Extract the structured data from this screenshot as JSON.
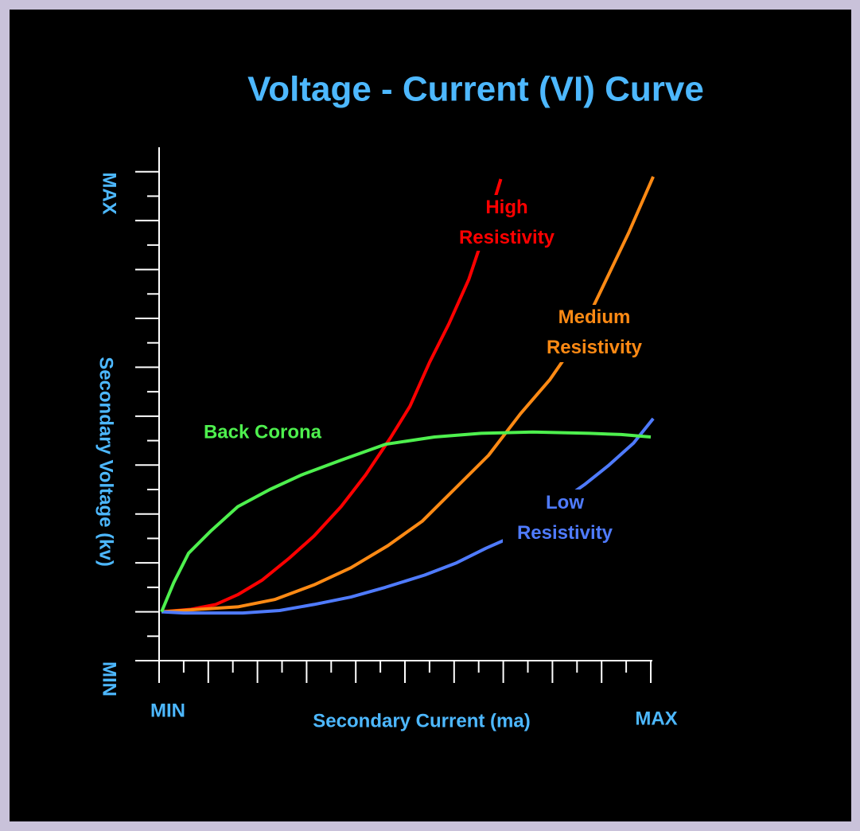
{
  "chart_data": {
    "type": "line",
    "title": "Voltage - Current (VI) Curve",
    "x_label": "Secondary Current (ma)",
    "y_label": "Secondary Voltage (kv)",
    "x_min_label": "MIN",
    "x_max_label": "MAX",
    "y_min_label": "MIN",
    "y_max_label": "MAX",
    "xlim": [
      0,
      20
    ],
    "ylim": [
      0,
      21
    ],
    "xticks": [
      0,
      1,
      2,
      3,
      4,
      5,
      6,
      7,
      8,
      9,
      10,
      11,
      12,
      13,
      14,
      15,
      16,
      17,
      18,
      19,
      20
    ],
    "yticks": [
      0,
      1,
      2,
      3,
      4,
      5,
      6,
      7,
      8,
      9,
      10,
      11,
      12,
      13,
      14,
      15,
      16,
      17,
      18,
      19,
      20
    ],
    "axis_color": "#ffffff",
    "text_color": "#4db8ff",
    "series": [
      {
        "name": "High Resistivity",
        "color": "#ff0000",
        "x": [
          0.1,
          1.3,
          2.3,
          3.2,
          4.2,
          5.3,
          6.3,
          7.4,
          8.4,
          9.4,
          10.2,
          11.0,
          11.8,
          12.6,
          13.1,
          13.6,
          13.9
        ],
        "values": [
          2.0,
          2.1,
          2.3,
          2.7,
          3.3,
          4.2,
          5.1,
          6.3,
          7.6,
          9.1,
          10.4,
          12.2,
          13.8,
          15.6,
          17.1,
          18.7,
          19.7
        ]
      },
      {
        "name": "Medium Resistivity",
        "color": "#ff8a14",
        "x": [
          0.1,
          1.6,
          3.2,
          4.7,
          6.3,
          7.8,
          9.3,
          10.7,
          12.0,
          13.4,
          14.7,
          15.9,
          17.0,
          18.1,
          19.1,
          20.1
        ],
        "values": [
          2.0,
          2.1,
          2.2,
          2.5,
          3.1,
          3.8,
          4.7,
          5.7,
          7.0,
          8.4,
          10.1,
          11.5,
          13.1,
          15.4,
          17.5,
          19.8
        ]
      },
      {
        "name": "Low Resistivity",
        "color": "#4f7bff",
        "x": [
          0.1,
          1.0,
          1.9,
          3.4,
          4.9,
          6.3,
          7.8,
          9.2,
          10.8,
          12.1,
          13.3,
          14.2,
          17.3,
          18.3,
          19.3,
          20.1
        ],
        "values": [
          2.0,
          1.95,
          1.95,
          1.95,
          2.05,
          2.3,
          2.6,
          3.0,
          3.5,
          4.0,
          4.6,
          5.0,
          7.2,
          8.0,
          8.9,
          9.9
        ]
      },
      {
        "name": "Back Corona",
        "color": "#4ef04e",
        "x": [
          0.1,
          0.6,
          1.2,
          2.1,
          3.2,
          4.5,
          5.8,
          7.4,
          9.2,
          11.2,
          13.1,
          15.2,
          17.5,
          18.8,
          20.0
        ],
        "values": [
          2.0,
          3.2,
          4.4,
          5.3,
          6.3,
          7.0,
          7.6,
          8.2,
          8.85,
          9.15,
          9.3,
          9.35,
          9.3,
          9.25,
          9.15
        ]
      }
    ]
  }
}
